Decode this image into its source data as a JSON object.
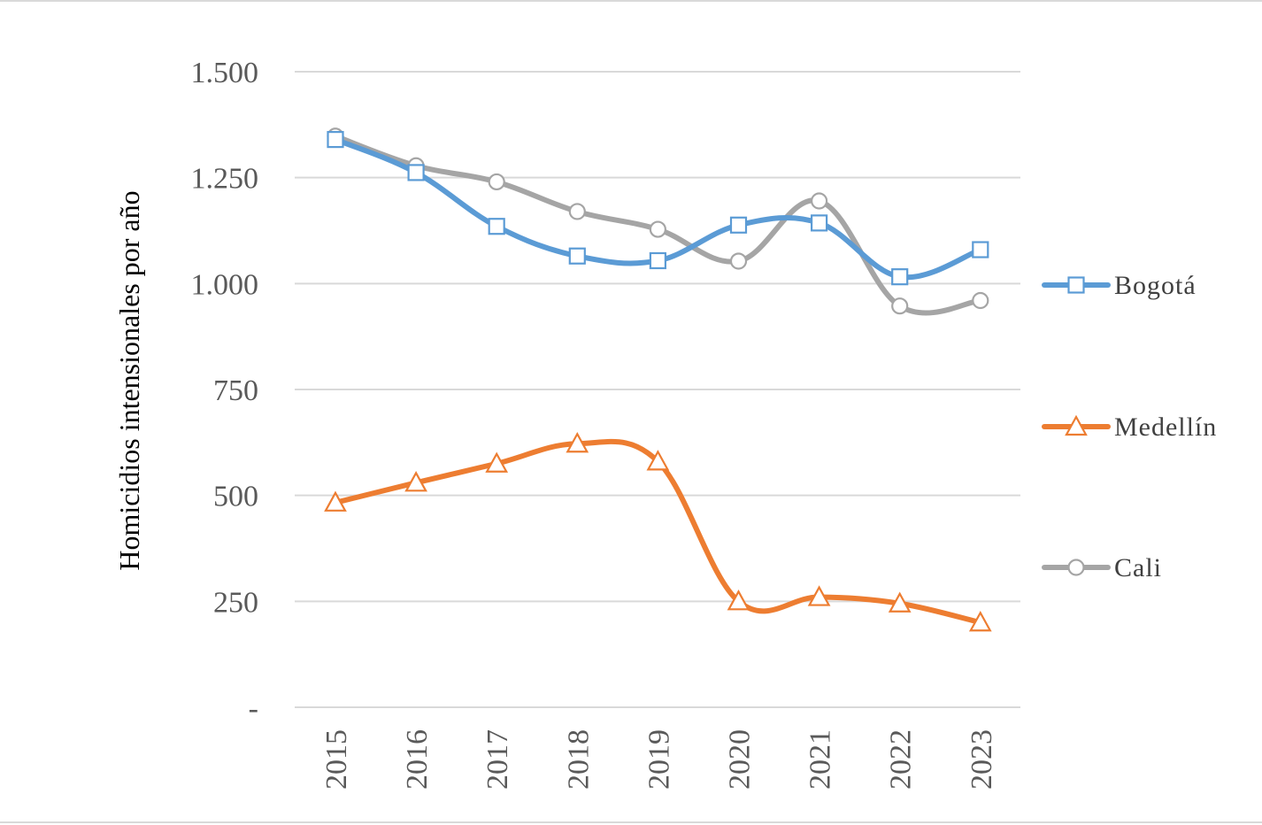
{
  "chart_data": {
    "type": "line",
    "title": "",
    "xlabel": "",
    "ylabel": "Homicidios intensionales por año",
    "ylim": [
      0,
      1500
    ],
    "yticks": [
      0,
      250,
      500,
      750,
      1000,
      1250,
      1500
    ],
    "ytick_labels": [
      "-",
      "250",
      "500",
      "750",
      "1.000",
      "1.250",
      "1.500"
    ],
    "categories": [
      "2015",
      "2016",
      "2017",
      "2018",
      "2019",
      "2020",
      "2021",
      "2022",
      "2023"
    ],
    "grid": true,
    "legend_position": "right",
    "series": [
      {
        "name": "Bogotá",
        "color": "#5b9bd5",
        "marker": "square",
        "values": [
          1340,
          1262,
          1135,
          1065,
          1054,
          1138,
          1143,
          1016,
          1080
        ]
      },
      {
        "name": "Medellín",
        "color": "#ed7d31",
        "marker": "triangle",
        "values": [
          483,
          530,
          575,
          622,
          580,
          250,
          260,
          245,
          200
        ]
      },
      {
        "name": "Cali",
        "color": "#a5a5a5",
        "marker": "circle",
        "values": [
          1348,
          1278,
          1240,
          1170,
          1128,
          1053,
          1195,
          947,
          960
        ]
      }
    ]
  }
}
